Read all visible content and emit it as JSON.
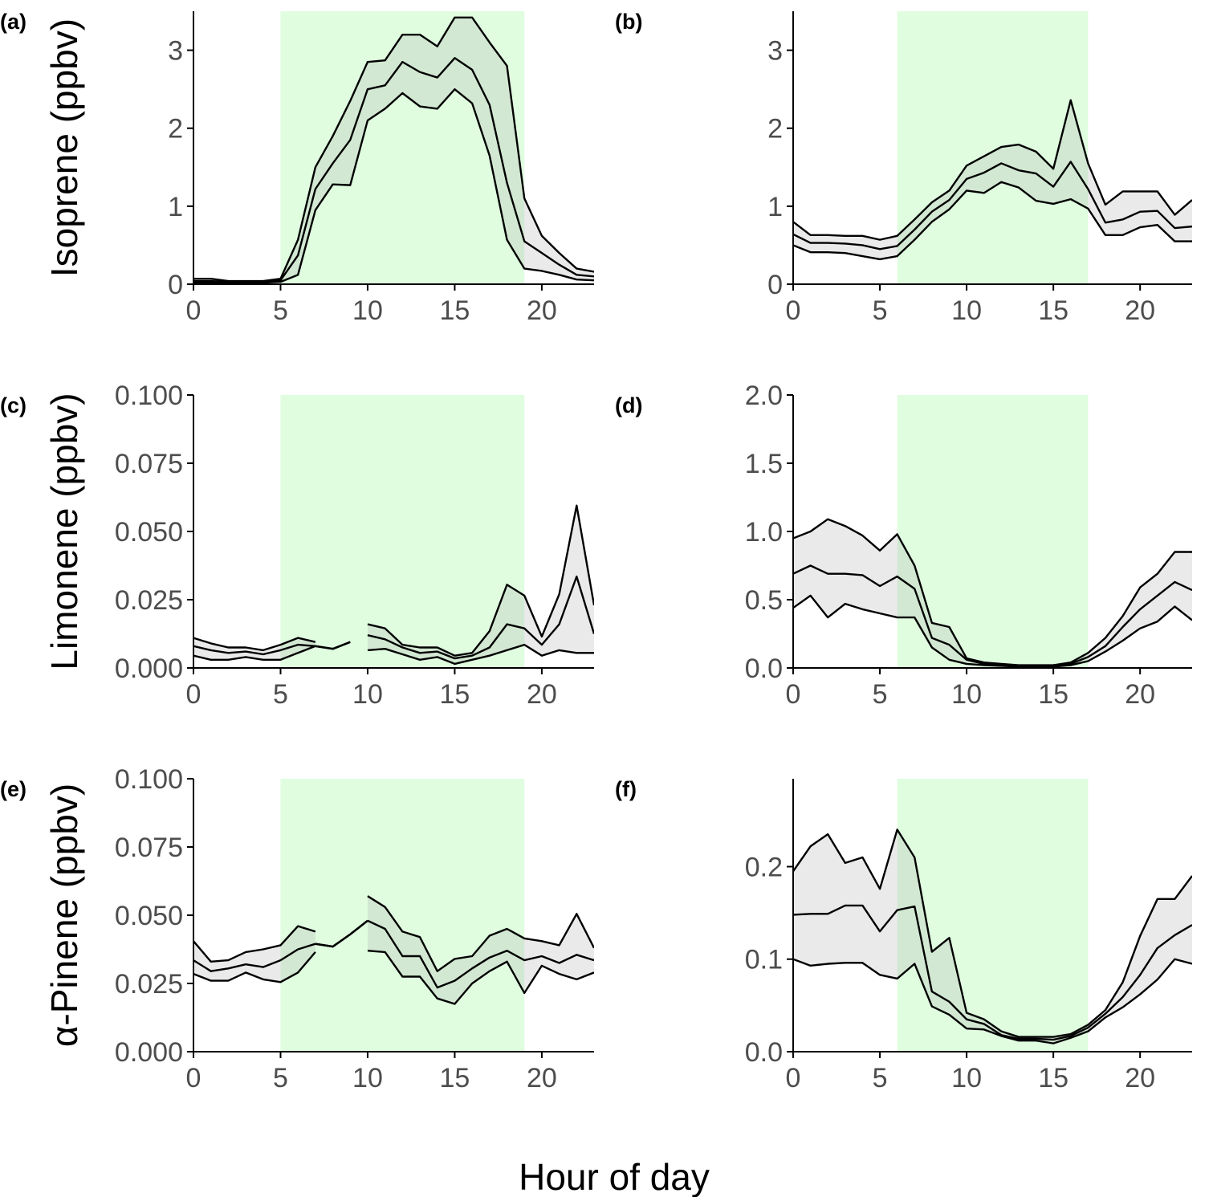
{
  "figure": {
    "xlabel": "Hour of day",
    "row_labels": [
      "Isoprene (ppbv)",
      "Limonene (ppbv)",
      "α-Pinene (ppbv)"
    ],
    "colors": {
      "daylight": "#e0fde0",
      "band": "#e8e8e8",
      "band_overlap": "#d4ebd4",
      "line": "#000000",
      "axis": "#000000",
      "tick_text": "#4d4d4d"
    }
  },
  "chart_data": [
    {
      "panel": "(a)",
      "type": "area",
      "row": 0,
      "col": 0,
      "ylim": [
        0,
        3.5
      ],
      "yticks": [
        "0",
        "1",
        "2",
        "3"
      ],
      "ytick_values": [
        0,
        1,
        2,
        3
      ],
      "xlim": [
        0,
        23
      ],
      "xticks": [
        "0",
        "5",
        "10",
        "15",
        "20"
      ],
      "xtick_values": [
        0,
        5,
        10,
        15,
        20
      ],
      "daylight": [
        5,
        19
      ],
      "x": [
        0,
        1,
        2,
        3,
        4,
        5,
        6,
        7,
        8,
        9,
        10,
        11,
        12,
        13,
        14,
        15,
        16,
        17,
        18,
        19,
        20,
        21,
        22,
        23
      ],
      "upper": [
        0.07,
        0.07,
        0.04,
        0.04,
        0.04,
        0.07,
        0.57,
        1.5,
        1.9,
        2.35,
        2.85,
        2.87,
        3.2,
        3.2,
        3.05,
        3.42,
        3.42,
        3.1,
        2.8,
        1.1,
        0.62,
        0.4,
        0.2,
        0.16
      ],
      "mid": [
        0.04,
        0.04,
        0.03,
        0.03,
        0.03,
        0.05,
        0.37,
        1.22,
        1.55,
        1.85,
        2.5,
        2.55,
        2.85,
        2.72,
        2.65,
        2.9,
        2.75,
        2.3,
        1.3,
        0.55,
        0.4,
        0.25,
        0.12,
        0.1
      ],
      "lower": [
        0.02,
        0.02,
        0.02,
        0.02,
        0.02,
        0.03,
        0.12,
        0.95,
        1.28,
        1.27,
        2.1,
        2.25,
        2.45,
        2.28,
        2.25,
        2.5,
        2.32,
        1.65,
        0.57,
        0.2,
        0.17,
        0.12,
        0.06,
        0.05
      ]
    },
    {
      "panel": "(b)",
      "type": "area",
      "row": 0,
      "col": 1,
      "ylim": [
        0,
        3.5
      ],
      "yticks": [
        "0",
        "1",
        "2",
        "3"
      ],
      "ytick_values": [
        0,
        1,
        2,
        3
      ],
      "xlim": [
        0,
        23
      ],
      "xticks": [
        "0",
        "5",
        "10",
        "15",
        "20"
      ],
      "xtick_values": [
        0,
        5,
        10,
        15,
        20
      ],
      "daylight": [
        6,
        17
      ],
      "x": [
        0,
        1,
        2,
        3,
        4,
        5,
        6,
        7,
        8,
        9,
        10,
        11,
        12,
        13,
        14,
        15,
        16,
        17,
        18,
        19,
        20,
        21,
        22,
        23
      ],
      "upper": [
        0.8,
        0.63,
        0.63,
        0.62,
        0.62,
        0.57,
        0.62,
        0.83,
        1.05,
        1.2,
        1.52,
        1.64,
        1.76,
        1.79,
        1.7,
        1.48,
        2.36,
        1.55,
        1.02,
        1.19,
        1.19,
        1.19,
        0.89,
        1.08
      ],
      "mid": [
        0.64,
        0.53,
        0.53,
        0.52,
        0.5,
        0.45,
        0.49,
        0.7,
        0.93,
        1.08,
        1.35,
        1.43,
        1.55,
        1.46,
        1.42,
        1.25,
        1.57,
        1.22,
        0.79,
        0.83,
        0.93,
        0.94,
        0.72,
        0.74
      ],
      "lower": [
        0.5,
        0.41,
        0.41,
        0.4,
        0.36,
        0.32,
        0.36,
        0.57,
        0.8,
        0.96,
        1.2,
        1.17,
        1.31,
        1.24,
        1.07,
        1.03,
        1.09,
        0.97,
        0.63,
        0.63,
        0.73,
        0.76,
        0.55,
        0.55
      ]
    },
    {
      "panel": "(c)",
      "type": "area",
      "row": 1,
      "col": 0,
      "ylim": [
        0,
        0.1
      ],
      "yticks": [
        "0.000",
        "0.025",
        "0.050",
        "0.075",
        "0.100"
      ],
      "ytick_values": [
        0,
        0.025,
        0.05,
        0.075,
        0.1
      ],
      "xlim": [
        0,
        23
      ],
      "xticks": [
        "0",
        "5",
        "10",
        "15",
        "20"
      ],
      "xtick_values": [
        0,
        5,
        10,
        15,
        20
      ],
      "daylight": [
        5,
        19
      ],
      "segments": [
        {
          "x": [
            0,
            1,
            2,
            3,
            4,
            5,
            6,
            7
          ],
          "upper": [
            0.011,
            0.009,
            0.0075,
            0.0075,
            0.0065,
            0.0085,
            0.011,
            0.0095
          ],
          "mid": [
            0.008,
            0.0065,
            0.0055,
            0.006,
            0.005,
            0.0065,
            0.0085,
            0.008
          ],
          "lower": [
            0.0045,
            0.003,
            0.003,
            0.004,
            0.003,
            0.003,
            0.0055,
            0.008
          ]
        },
        {
          "x": [
            7,
            8,
            9
          ],
          "upper": [
            0.008,
            0.007,
            0.0095
          ],
          "mid": [
            0.008,
            0.007,
            0.0095
          ],
          "lower": [
            0.008,
            0.007,
            0.0095
          ]
        },
        {
          "x": [
            10,
            11,
            12,
            13,
            14,
            15,
            16,
            17,
            18,
            19,
            20,
            21,
            22,
            23
          ],
          "upper": [
            0.016,
            0.0145,
            0.0085,
            0.0075,
            0.0075,
            0.0045,
            0.0055,
            0.0135,
            0.0305,
            0.0265,
            0.0115,
            0.027,
            0.0595,
            0.023
          ],
          "mid": [
            0.012,
            0.0105,
            0.0075,
            0.0055,
            0.006,
            0.0035,
            0.0045,
            0.0075,
            0.016,
            0.0145,
            0.0085,
            0.016,
            0.0335,
            0.0125
          ],
          "lower": [
            0.0065,
            0.007,
            0.005,
            0.003,
            0.004,
            0.0015,
            0.003,
            0.0045,
            0.0065,
            0.0085,
            0.0045,
            0.0065,
            0.0055,
            0.0055
          ]
        }
      ]
    },
    {
      "panel": "(d)",
      "type": "area",
      "row": 1,
      "col": 1,
      "ylim": [
        0,
        2.0
      ],
      "yticks": [
        "0.0",
        "0.5",
        "1.0",
        "1.5",
        "2.0"
      ],
      "ytick_values": [
        0,
        0.5,
        1.0,
        1.5,
        2.0
      ],
      "xlim": [
        0,
        23
      ],
      "xticks": [
        "0",
        "5",
        "10",
        "15",
        "20"
      ],
      "xtick_values": [
        0,
        5,
        10,
        15,
        20
      ],
      "daylight": [
        6,
        17
      ],
      "x": [
        0,
        1,
        2,
        3,
        4,
        5,
        6,
        7,
        8,
        9,
        10,
        11,
        12,
        13,
        14,
        15,
        16,
        17,
        18,
        19,
        20,
        21,
        22,
        23
      ],
      "upper": [
        0.95,
        1.0,
        1.09,
        1.04,
        0.97,
        0.86,
        0.98,
        0.75,
        0.33,
        0.3,
        0.07,
        0.04,
        0.03,
        0.02,
        0.02,
        0.02,
        0.04,
        0.11,
        0.22,
        0.38,
        0.59,
        0.69,
        0.85,
        0.85
      ],
      "mid": [
        0.69,
        0.75,
        0.69,
        0.69,
        0.68,
        0.6,
        0.67,
        0.58,
        0.22,
        0.17,
        0.06,
        0.03,
        0.02,
        0.015,
        0.015,
        0.02,
        0.03,
        0.08,
        0.16,
        0.3,
        0.43,
        0.53,
        0.63,
        0.57
      ],
      "lower": [
        0.44,
        0.53,
        0.37,
        0.47,
        0.43,
        0.4,
        0.37,
        0.37,
        0.15,
        0.06,
        0.03,
        0.02,
        0.015,
        0.01,
        0.01,
        0.01,
        0.02,
        0.05,
        0.12,
        0.2,
        0.29,
        0.34,
        0.45,
        0.35
      ]
    },
    {
      "panel": "(e)",
      "type": "area",
      "row": 2,
      "col": 0,
      "ylim": [
        0,
        0.1
      ],
      "yticks": [
        "0.000",
        "0.025",
        "0.050",
        "0.075",
        "0.100"
      ],
      "ytick_values": [
        0,
        0.025,
        0.05,
        0.075,
        0.1
      ],
      "xlim": [
        0,
        23
      ],
      "xticks": [
        "0",
        "5",
        "10",
        "15",
        "20"
      ],
      "xtick_values": [
        0,
        5,
        10,
        15,
        20
      ],
      "daylight": [
        5,
        19
      ],
      "segments": [
        {
          "x": [
            0,
            1,
            2,
            3,
            4,
            5,
            6,
            7
          ],
          "upper": [
            0.0405,
            0.033,
            0.0335,
            0.0365,
            0.0375,
            0.039,
            0.046,
            0.044
          ],
          "mid": [
            0.0335,
            0.0295,
            0.0305,
            0.032,
            0.031,
            0.0335,
            0.0375,
            0.0395
          ],
          "lower": [
            0.0285,
            0.026,
            0.026,
            0.029,
            0.0265,
            0.0255,
            0.029,
            0.0365
          ]
        },
        {
          "x": [
            7,
            8,
            9,
            10
          ],
          "upper": [
            0.0395,
            0.0385,
            0.043,
            0.048
          ],
          "mid": [
            0.0395,
            0.0385,
            0.043,
            0.048
          ],
          "lower": [
            0.0395,
            0.0385,
            0.043,
            0.048
          ]
        },
        {
          "x": [
            10,
            11,
            12,
            13,
            14,
            15,
            16,
            17,
            18,
            19,
            20,
            21,
            22,
            23
          ],
          "upper": [
            0.057,
            0.053,
            0.044,
            0.042,
            0.0295,
            0.034,
            0.035,
            0.0425,
            0.045,
            0.0415,
            0.0405,
            0.039,
            0.0505,
            0.038
          ],
          "mid": [
            0.048,
            0.045,
            0.035,
            0.035,
            0.0235,
            0.026,
            0.0305,
            0.0345,
            0.037,
            0.0335,
            0.035,
            0.0325,
            0.0355,
            0.0335
          ],
          "lower": [
            0.037,
            0.0365,
            0.0275,
            0.0275,
            0.0195,
            0.0175,
            0.025,
            0.0295,
            0.033,
            0.0215,
            0.0315,
            0.0285,
            0.0265,
            0.029
          ]
        }
      ]
    },
    {
      "panel": "(f)",
      "type": "area",
      "row": 2,
      "col": 1,
      "ylim": [
        0,
        0.295
      ],
      "yticks": [
        "0.0",
        "0.1",
        "0.2"
      ],
      "ytick_values": [
        0,
        0.1,
        0.2
      ],
      "xlim": [
        0,
        23
      ],
      "xticks": [
        "0",
        "5",
        "10",
        "15",
        "20"
      ],
      "xtick_values": [
        0,
        5,
        10,
        15,
        20
      ],
      "daylight": [
        6,
        17
      ],
      "x": [
        0,
        1,
        2,
        3,
        4,
        5,
        6,
        7,
        8,
        9,
        10,
        11,
        12,
        13,
        14,
        15,
        16,
        17,
        18,
        19,
        20,
        21,
        22,
        23
      ],
      "upper": [
        0.195,
        0.222,
        0.235,
        0.204,
        0.21,
        0.176,
        0.24,
        0.21,
        0.108,
        0.123,
        0.042,
        0.035,
        0.022,
        0.016,
        0.016,
        0.016,
        0.019,
        0.029,
        0.045,
        0.075,
        0.125,
        0.165,
        0.165,
        0.19
      ],
      "mid": [
        0.148,
        0.149,
        0.149,
        0.158,
        0.158,
        0.13,
        0.153,
        0.157,
        0.065,
        0.054,
        0.035,
        0.03,
        0.018,
        0.014,
        0.014,
        0.013,
        0.017,
        0.026,
        0.041,
        0.059,
        0.083,
        0.112,
        0.126,
        0.137
      ],
      "lower": [
        0.1,
        0.093,
        0.095,
        0.096,
        0.096,
        0.083,
        0.079,
        0.095,
        0.049,
        0.04,
        0.025,
        0.024,
        0.017,
        0.012,
        0.012,
        0.009,
        0.015,
        0.022,
        0.037,
        0.048,
        0.062,
        0.078,
        0.1,
        0.095
      ]
    }
  ]
}
